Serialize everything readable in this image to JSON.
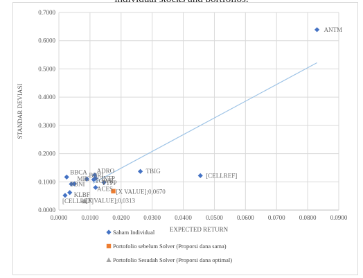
{
  "caption": "individual stocks and portfolios.",
  "chart_data": {
    "type": "scatter",
    "xlabel": "EXPECTED RETURN",
    "ylabel": "STANDAR DEVIASI",
    "xlim": [
      0,
      0.09
    ],
    "ylim": [
      0,
      0.7
    ],
    "x_ticks": [
      "0.0000",
      "0.0100",
      "0.0200",
      "0.0300",
      "0.0400",
      "0.0500",
      "0.0600",
      "0.0700",
      "0.0800",
      "0.0900"
    ],
    "y_ticks": [
      "0.0000",
      "0.1000",
      "0.2000",
      "0.3000",
      "0.4000",
      "0.5000",
      "0.6000",
      "0.7000"
    ],
    "grid": true,
    "legend_position": "bottom",
    "trendline": {
      "x": [
        0.011,
        0.083
      ],
      "y": [
        0.095,
        0.522
      ],
      "color": "#9dc3e6"
    },
    "series": [
      {
        "name": "Saham Individual",
        "marker": "diamond",
        "color": "#4472c4",
        "points": [
          {
            "label": "ANTM",
            "x": 0.083,
            "y": 0.639
          },
          {
            "label": "[CELLREF]",
            "x": 0.0455,
            "y": 0.122
          },
          {
            "label": "TBIG",
            "x": 0.0262,
            "y": 0.137
          },
          {
            "label": "BBCA",
            "x": 0.0025,
            "y": 0.117
          },
          {
            "label": "MIK",
            "x": 0.005,
            "y": 0.093
          },
          {
            "label": "BBNI",
            "x": 0.004,
            "y": 0.092
          },
          {
            "label": "BBRI",
            "x": 0.009,
            "y": 0.11
          },
          {
            "label": "ADRO",
            "x": 0.0115,
            "y": 0.124
          },
          {
            "label": "TOWR",
            "x": 0.0112,
            "y": 0.108
          },
          {
            "label": "INTP",
            "x": 0.0118,
            "y": 0.112
          },
          {
            "label": "PTPP",
            "x": 0.0145,
            "y": 0.098
          },
          {
            "label": "ACES",
            "x": 0.0118,
            "y": 0.08
          },
          {
            "label": "KLBF",
            "x": 0.0035,
            "y": 0.062
          },
          {
            "label": "[CELLREF]",
            "x": 0.002,
            "y": 0.052
          }
        ]
      },
      {
        "name": "Portofolio sebelum Solver (Proporsi dana sama)",
        "marker": "square",
        "color": "#ed7d31",
        "points": [
          {
            "label": "[X VALUE];0,0670",
            "x": 0.0175,
            "y": 0.067
          }
        ]
      },
      {
        "name": "Portofolio Sesudah Solver (Proporsi dana optimal)",
        "marker": "triangle",
        "color": "#a5a5a5",
        "points": [
          {
            "label": "[X VALUE];0,0313",
            "x": 0.0082,
            "y": 0.0313
          }
        ]
      }
    ]
  }
}
